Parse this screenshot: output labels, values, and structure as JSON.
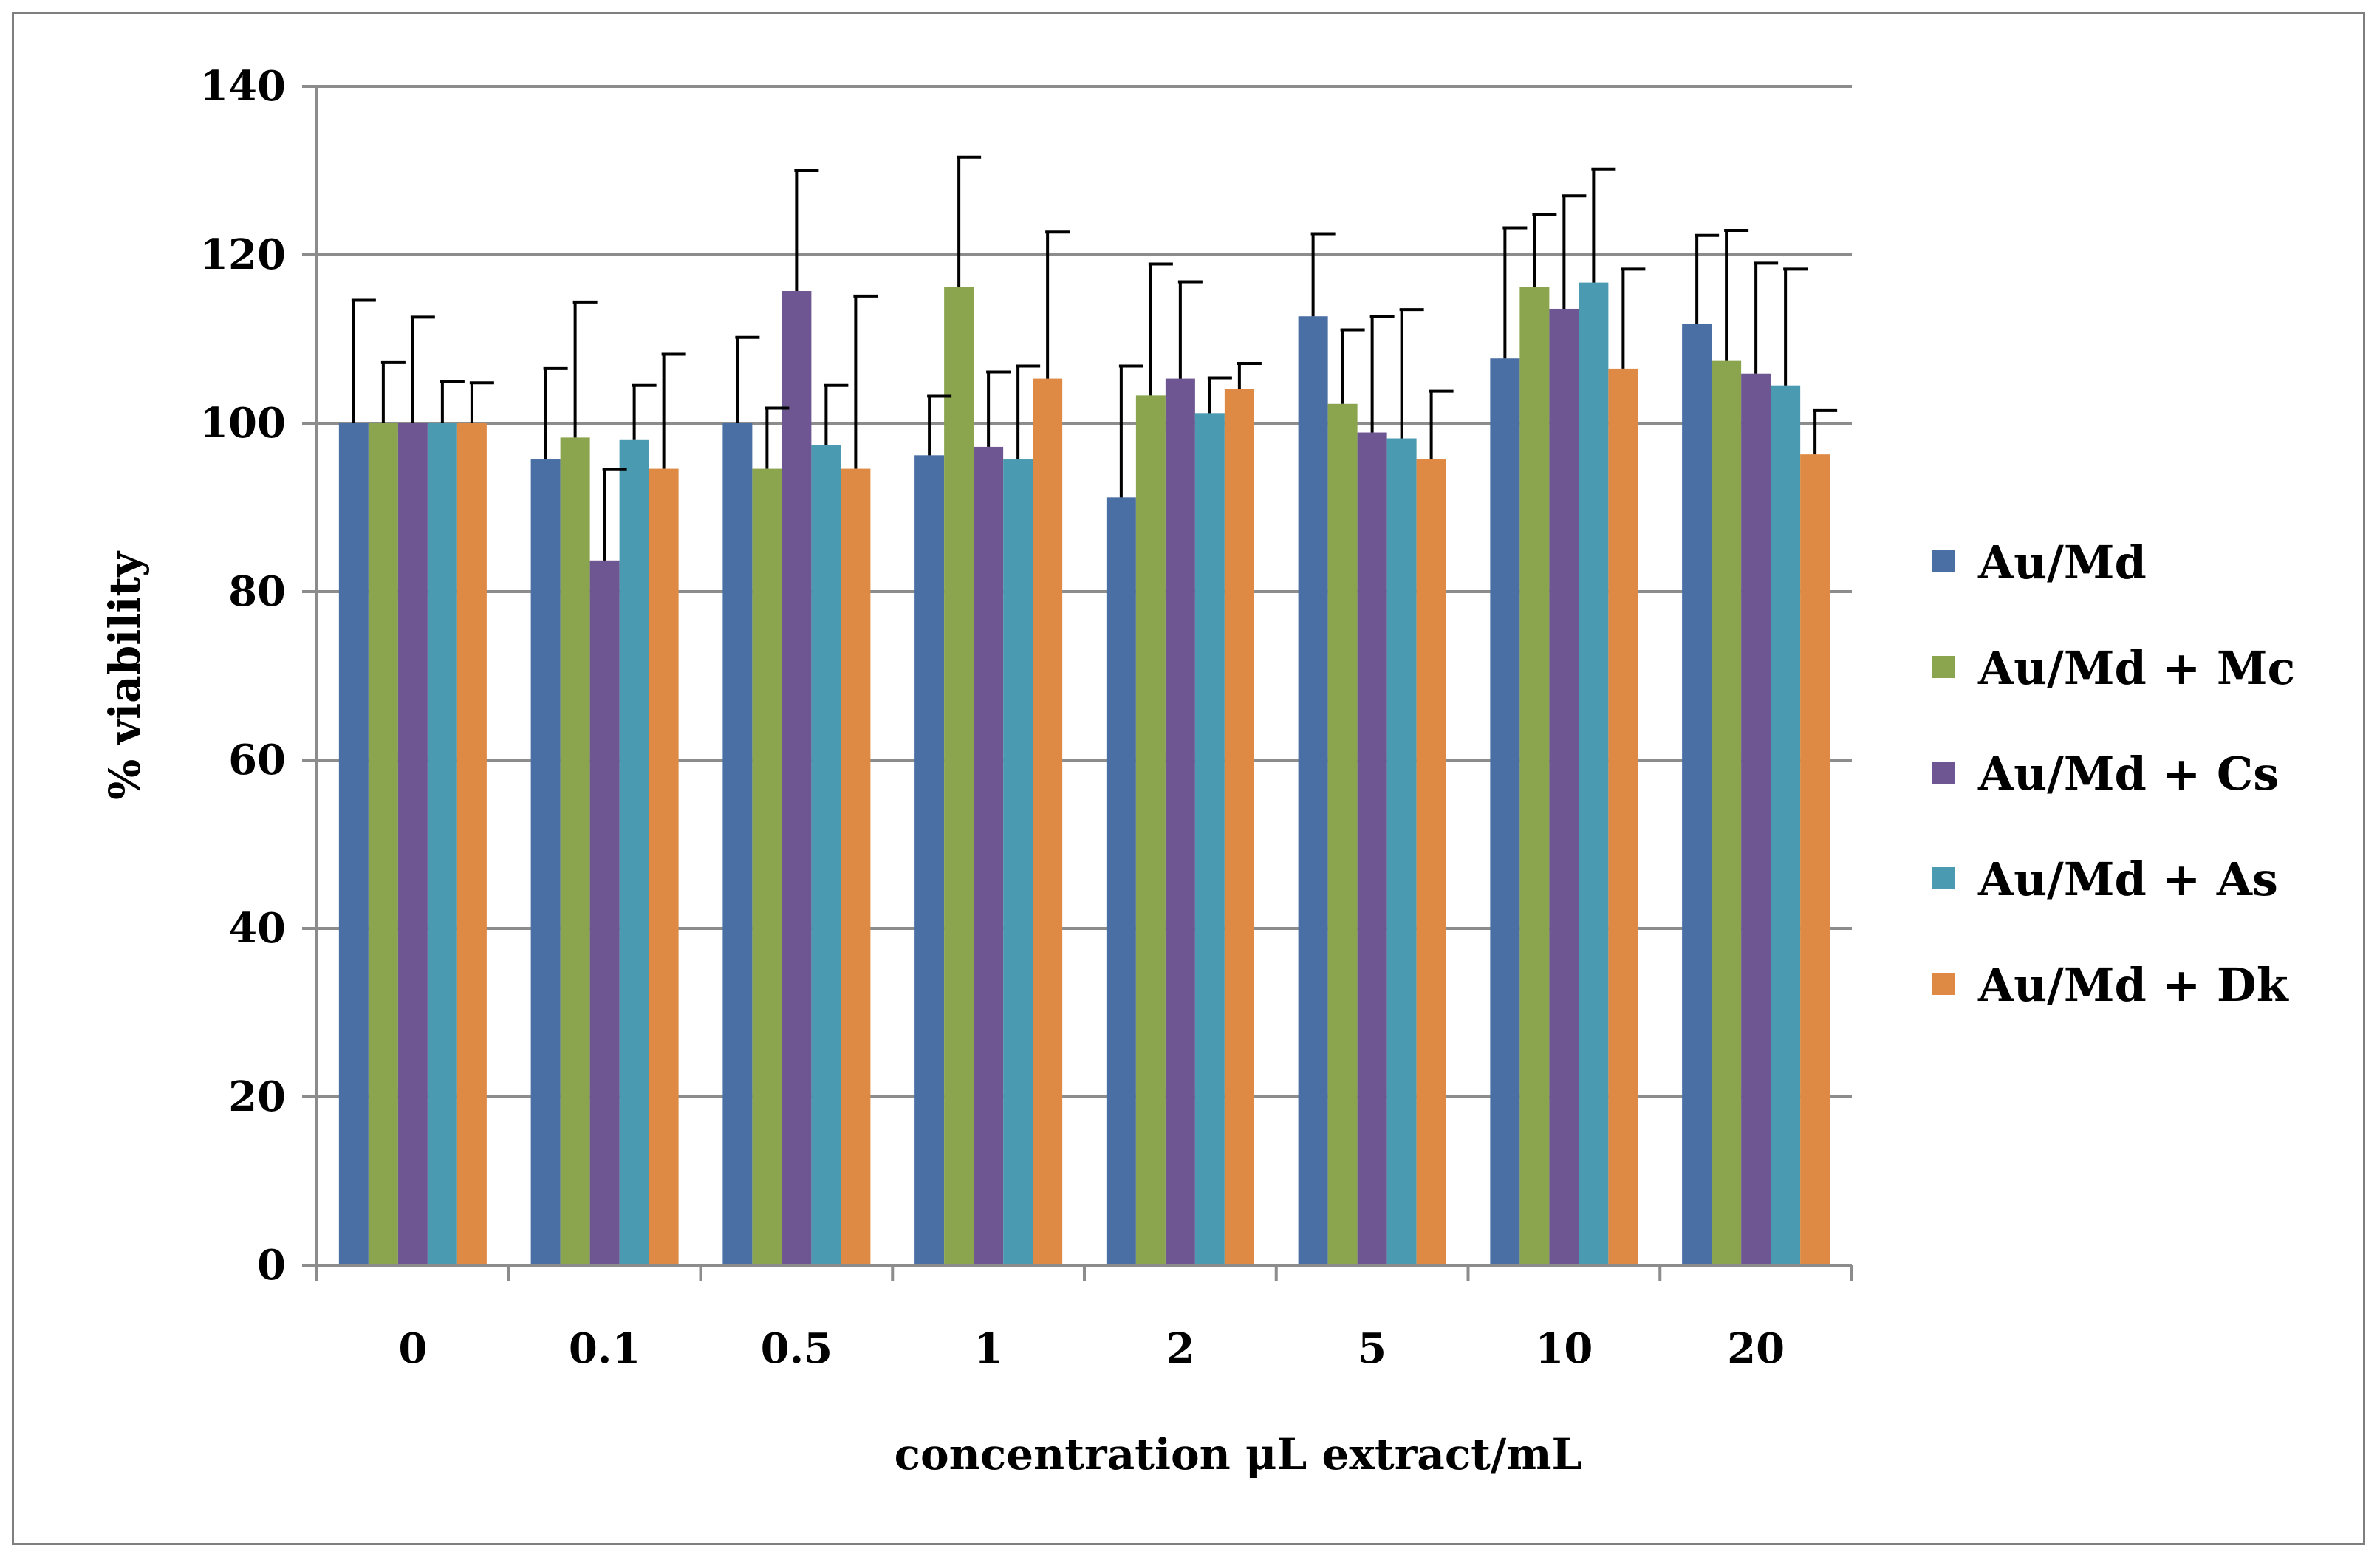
{
  "chart_data": {
    "type": "bar",
    "title": "",
    "xlabel": "concentration μL extract/mL",
    "ylabel": "% viability",
    "ylim": [
      0,
      140
    ],
    "yticks": [
      0,
      20,
      40,
      60,
      80,
      100,
      120,
      140
    ],
    "grid": true,
    "legend": "right",
    "categories": [
      "0",
      "0.1",
      "0.5",
      "1",
      "2",
      "5",
      "10",
      "20"
    ],
    "series": [
      {
        "name": "Au/Md",
        "color": "#4a6fa5",
        "values": [
          100,
          95.7,
          100,
          96.2,
          91.2,
          112.7,
          107.7,
          111.8
        ],
        "error": [
          14.6,
          10.8,
          10.2,
          7.0,
          15.6,
          9.8,
          15.5,
          10.5
        ]
      },
      {
        "name": "Au/Md + Mc",
        "color": "#8ba54f",
        "values": [
          100,
          98.3,
          94.6,
          116.2,
          103.3,
          102.3,
          116.2,
          107.4
        ],
        "error": [
          7.2,
          16.1,
          7.2,
          15.4,
          15.6,
          8.8,
          8.6,
          15.5
        ]
      },
      {
        "name": "Au/Md + Cs",
        "color": "#6e5692",
        "values": [
          100,
          83.7,
          115.7,
          97.2,
          105.3,
          98.9,
          113.6,
          105.9
        ],
        "error": [
          12.6,
          10.8,
          14.3,
          8.9,
          11.5,
          13.8,
          13.4,
          13.1
        ]
      },
      {
        "name": "Au/Md + As",
        "color": "#4a9ab1",
        "values": [
          100,
          98.0,
          97.4,
          95.7,
          101.2,
          98.2,
          116.7,
          104.5
        ],
        "error": [
          5.0,
          6.5,
          7.1,
          11.1,
          4.2,
          15.3,
          13.5,
          13.8
        ]
      },
      {
        "name": "Au/Md + Dk",
        "color": "#df8a44",
        "values": [
          100,
          94.6,
          94.6,
          105.3,
          104.1,
          95.7,
          106.5,
          96.3
        ],
        "error": [
          4.8,
          13.6,
          20.5,
          17.4,
          3.0,
          8.1,
          11.8,
          5.2
        ]
      }
    ]
  }
}
